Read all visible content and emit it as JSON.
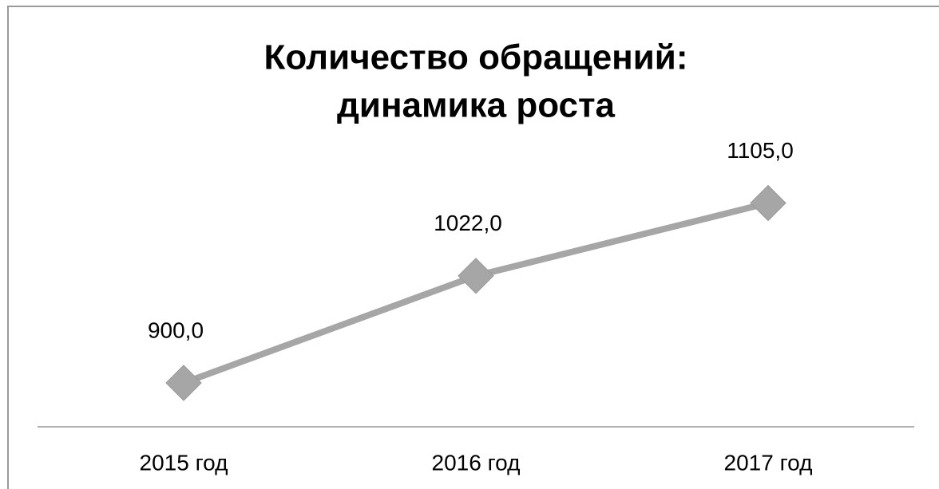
{
  "chart_data": {
    "type": "line",
    "title": [
      "Количество обращений:",
      "динамика роста"
    ],
    "categories": [
      "2015 год",
      "2016 год",
      "2017 год"
    ],
    "values": [
      900,
      1022,
      1105
    ],
    "value_labels": [
      "900,0",
      "1022,0",
      "1105,0"
    ],
    "color": "#a6a6a6",
    "marker": "diamond",
    "ylim": [
      850,
      1150
    ]
  }
}
